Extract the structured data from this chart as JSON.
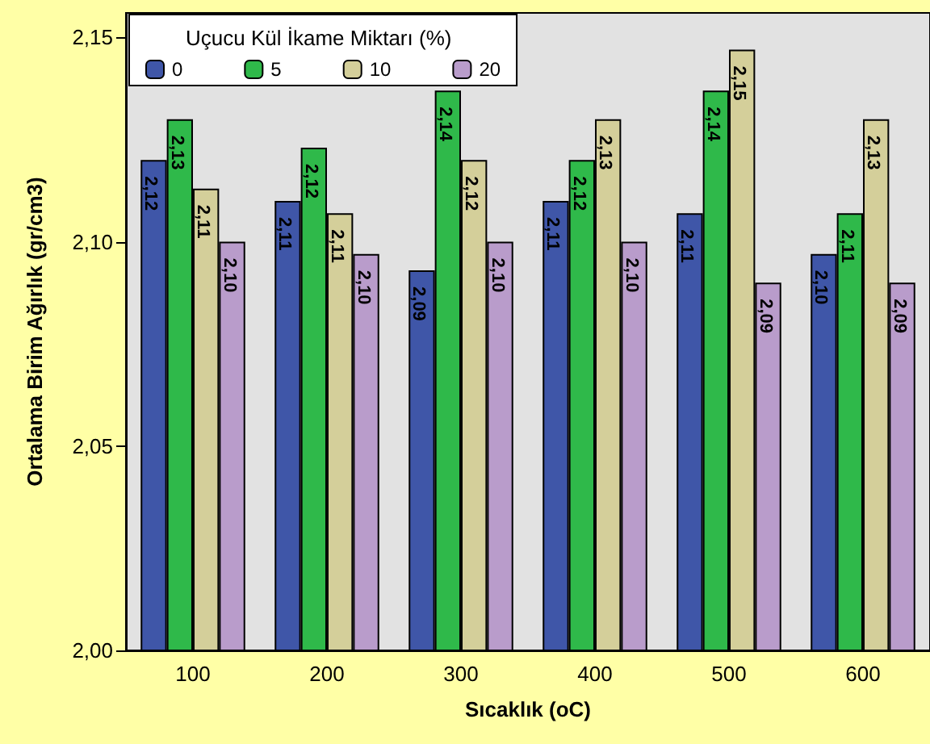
{
  "chart_data": {
    "type": "bar",
    "xlabel": "Sıcaklık (oC)",
    "ylabel": "Ortalama Birim Ağırlık (gr/cm3)",
    "legend_title": "Uçucu Kül İkame Miktarı (%)",
    "categories": [
      "100",
      "200",
      "300",
      "400",
      "500",
      "600"
    ],
    "series": [
      {
        "name": "0",
        "color": "#3f56a8",
        "values": [
          2.12,
          2.11,
          2.093,
          2.11,
          2.107,
          2.097
        ],
        "value_labels": [
          "2,12",
          "2,11",
          "2,09",
          "2,11",
          "2,11",
          "2,10"
        ]
      },
      {
        "name": "5",
        "color": "#2fb94a",
        "values": [
          2.13,
          2.123,
          2.137,
          2.12,
          2.137,
          2.107
        ],
        "value_labels": [
          "2,13",
          "2,12",
          "2,14",
          "2,12",
          "2,14",
          "2,11"
        ]
      },
      {
        "name": "10",
        "color": "#d4cf9a",
        "values": [
          2.113,
          2.107,
          2.12,
          2.13,
          2.147,
          2.13
        ],
        "value_labels": [
          "2,11",
          "2,11",
          "2,12",
          "2,13",
          "2,15",
          "2,13"
        ]
      },
      {
        "name": "20",
        "color": "#b99ccb",
        "values": [
          2.1,
          2.097,
          2.1,
          2.1,
          2.09,
          2.09
        ],
        "value_labels": [
          "2,10",
          "2,10",
          "2,10",
          "2,10",
          "2,09",
          "2,09"
        ]
      }
    ],
    "ylim": [
      2.0,
      2.156
    ],
    "yticks": [
      {
        "value": 2.0,
        "label": "2,00"
      },
      {
        "value": 2.05,
        "label": "2,05"
      },
      {
        "value": 2.1,
        "label": "2,10"
      },
      {
        "value": 2.15,
        "label": "2,15"
      }
    ],
    "grid": false,
    "legend": "top left"
  }
}
